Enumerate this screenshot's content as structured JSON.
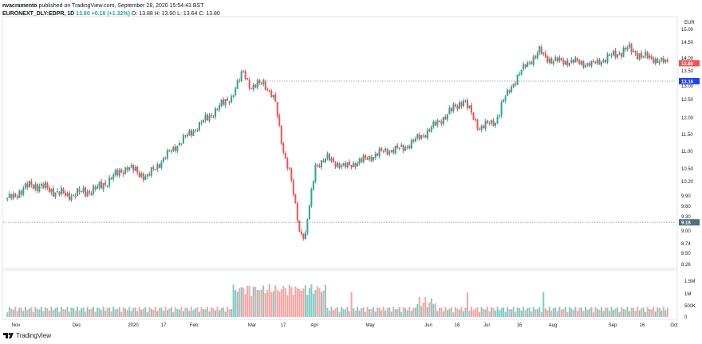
{
  "header": {
    "author": "nvacramento",
    "published_text": "published on TradingView.com, September 28, 2020 15:54:43 BST",
    "symbol": "EURONEXT_DLY:EDPR, 1D",
    "close_label": "13.80",
    "change_text": "+0.18 (+1.32%)",
    "ohlc_text": "O: 13.88  H: 13.90  L: 13.64  C: 13.80"
  },
  "footer": {
    "brand": "TradingView"
  },
  "colors": {
    "up": "#26a69a",
    "down": "#ef5350",
    "up_vol": "#80cbc4",
    "down_vol": "#f4a6a4",
    "last_price_bg": "#ef5350",
    "hline_label_bg": "#2142f0",
    "support_label_bg": "#546e7a"
  },
  "chart_data": [
    {
      "type": "candlestick",
      "currency": "EUR",
      "ylim": [
        8.26,
        15.2
      ],
      "price_ticks": [
        "15.00",
        "14.50",
        "14.00",
        "13.50",
        "13.00",
        "12.50",
        "12.00",
        "11.50",
        "11.00",
        "10.50",
        "10.20",
        "9.90",
        "9.60",
        "9.30",
        "9.00",
        "8.74",
        "8.50",
        "8.26"
      ],
      "last_price": "13.80",
      "horizontal_lines": [
        {
          "value": 13.16,
          "label": "13.16",
          "style": "dotted"
        },
        {
          "value": 9.18,
          "label": "9.18",
          "style": "dotted"
        }
      ],
      "x_ticks": [
        "Nov",
        "Dec",
        "2020",
        "17",
        "Feb",
        "Mar",
        "17",
        "Apr",
        "May",
        "Jun",
        "16",
        "Jul",
        "16",
        "Aug",
        "Sep",
        "16",
        "Oct"
      ],
      "anchors": [
        [
          0,
          9.8
        ],
        [
          12,
          10.15
        ],
        [
          20,
          10.05
        ],
        [
          30,
          9.9
        ],
        [
          45,
          10.05
        ],
        [
          60,
          10.55
        ],
        [
          70,
          10.3
        ],
        [
          85,
          11.2
        ],
        [
          100,
          12.0
        ],
        [
          112,
          12.6
        ],
        [
          118,
          13.5
        ],
        [
          122,
          12.9
        ],
        [
          128,
          13.15
        ],
        [
          134,
          12.4
        ],
        [
          138,
          11.0
        ],
        [
          142,
          10.2
        ],
        [
          146,
          9.0
        ],
        [
          149,
          8.9
        ],
        [
          154,
          10.6
        ],
        [
          160,
          10.8
        ],
        [
          168,
          10.55
        ],
        [
          178,
          10.75
        ],
        [
          188,
          11.0
        ],
        [
          198,
          11.1
        ],
        [
          208,
          11.5
        ],
        [
          220,
          12.1
        ],
        [
          228,
          12.5
        ],
        [
          236,
          11.7
        ],
        [
          244,
          11.9
        ],
        [
          252,
          13.0
        ],
        [
          260,
          13.8
        ],
        [
          266,
          14.2
        ],
        [
          272,
          13.9
        ],
        [
          284,
          13.85
        ],
        [
          292,
          13.75
        ],
        [
          300,
          14.0
        ],
        [
          310,
          14.3
        ],
        [
          318,
          14.05
        ],
        [
          324,
          13.95
        ],
        [
          330,
          13.8
        ]
      ],
      "volume_ticks": [
        "1.5M",
        "1M",
        "500K",
        "0"
      ]
    }
  ]
}
